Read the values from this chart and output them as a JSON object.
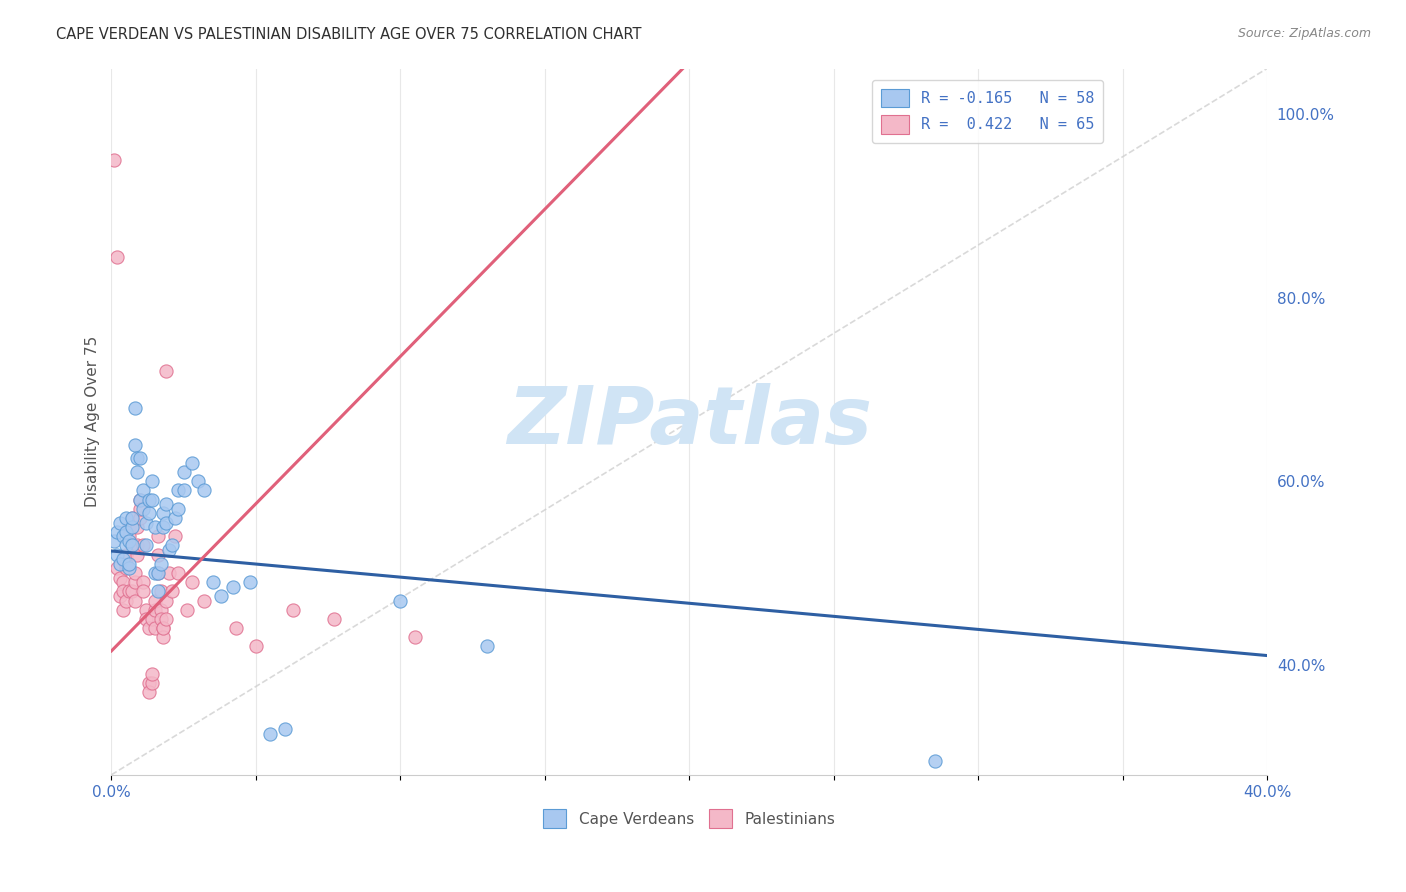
{
  "title": "CAPE VERDEAN VS PALESTINIAN DISABILITY AGE OVER 75 CORRELATION CHART",
  "source": "Source: ZipAtlas.com",
  "ylabel": "Disability Age Over 75",
  "xlim": [
    0.0,
    0.4
  ],
  "ylim": [
    0.28,
    1.05
  ],
  "xticks": [
    0.0,
    0.05,
    0.1,
    0.15,
    0.2,
    0.25,
    0.3,
    0.35,
    0.4
  ],
  "yticks_right": [
    0.4,
    0.6,
    0.8,
    1.0
  ],
  "cv_color": "#a8c8f0",
  "cv_color_edge": "#5b9bd5",
  "pal_color": "#f4b8c8",
  "pal_color_edge": "#e07090",
  "cv_trend_color": "#2e5fa3",
  "pal_trend_color": "#e0607a",
  "tick_color_blue": "#4472c4",
  "grid_color": "#e8e8e8",
  "background_color": "#ffffff",
  "title_color": "#303030",
  "source_color": "#888888",
  "diagonal_color": "#d0d0d0",
  "watermark_color": "#d0e4f5",
  "legend_label_cv": "R = -0.165   N = 58",
  "legend_label_pal": "R =  0.422   N = 65",
  "legend_entries_bottom": [
    "Cape Verdeans",
    "Palestinians"
  ],
  "cv_scatter": [
    [
      0.001,
      0.535
    ],
    [
      0.002,
      0.545
    ],
    [
      0.002,
      0.52
    ],
    [
      0.003,
      0.555
    ],
    [
      0.003,
      0.51
    ],
    [
      0.004,
      0.54
    ],
    [
      0.004,
      0.515
    ],
    [
      0.005,
      0.53
    ],
    [
      0.005,
      0.545
    ],
    [
      0.005,
      0.56
    ],
    [
      0.006,
      0.505
    ],
    [
      0.006,
      0.535
    ],
    [
      0.006,
      0.51
    ],
    [
      0.007,
      0.55
    ],
    [
      0.007,
      0.53
    ],
    [
      0.007,
      0.56
    ],
    [
      0.008,
      0.68
    ],
    [
      0.008,
      0.64
    ],
    [
      0.009,
      0.625
    ],
    [
      0.009,
      0.61
    ],
    [
      0.01,
      0.625
    ],
    [
      0.01,
      0.58
    ],
    [
      0.011,
      0.59
    ],
    [
      0.011,
      0.57
    ],
    [
      0.012,
      0.555
    ],
    [
      0.012,
      0.53
    ],
    [
      0.013,
      0.565
    ],
    [
      0.013,
      0.58
    ],
    [
      0.014,
      0.6
    ],
    [
      0.014,
      0.58
    ],
    [
      0.015,
      0.55
    ],
    [
      0.015,
      0.5
    ],
    [
      0.016,
      0.48
    ],
    [
      0.016,
      0.5
    ],
    [
      0.017,
      0.51
    ],
    [
      0.018,
      0.55
    ],
    [
      0.018,
      0.565
    ],
    [
      0.019,
      0.575
    ],
    [
      0.019,
      0.555
    ],
    [
      0.02,
      0.525
    ],
    [
      0.021,
      0.53
    ],
    [
      0.022,
      0.56
    ],
    [
      0.023,
      0.57
    ],
    [
      0.023,
      0.59
    ],
    [
      0.025,
      0.61
    ],
    [
      0.025,
      0.59
    ],
    [
      0.028,
      0.62
    ],
    [
      0.03,
      0.6
    ],
    [
      0.032,
      0.59
    ],
    [
      0.035,
      0.49
    ],
    [
      0.038,
      0.475
    ],
    [
      0.042,
      0.485
    ],
    [
      0.048,
      0.49
    ],
    [
      0.055,
      0.325
    ],
    [
      0.06,
      0.33
    ],
    [
      0.1,
      0.47
    ],
    [
      0.13,
      0.42
    ],
    [
      0.285,
      0.295
    ]
  ],
  "pal_scatter": [
    [
      0.001,
      0.95
    ],
    [
      0.002,
      0.845
    ],
    [
      0.002,
      0.505
    ],
    [
      0.003,
      0.495
    ],
    [
      0.003,
      0.475
    ],
    [
      0.004,
      0.46
    ],
    [
      0.004,
      0.49
    ],
    [
      0.004,
      0.48
    ],
    [
      0.005,
      0.505
    ],
    [
      0.005,
      0.51
    ],
    [
      0.005,
      0.52
    ],
    [
      0.005,
      0.47
    ],
    [
      0.006,
      0.48
    ],
    [
      0.006,
      0.55
    ],
    [
      0.006,
      0.54
    ],
    [
      0.007,
      0.56
    ],
    [
      0.007,
      0.53
    ],
    [
      0.007,
      0.48
    ],
    [
      0.008,
      0.47
    ],
    [
      0.008,
      0.49
    ],
    [
      0.008,
      0.5
    ],
    [
      0.009,
      0.52
    ],
    [
      0.009,
      0.55
    ],
    [
      0.009,
      0.53
    ],
    [
      0.01,
      0.58
    ],
    [
      0.01,
      0.56
    ],
    [
      0.01,
      0.57
    ],
    [
      0.011,
      0.53
    ],
    [
      0.011,
      0.49
    ],
    [
      0.011,
      0.48
    ],
    [
      0.012,
      0.46
    ],
    [
      0.012,
      0.45
    ],
    [
      0.013,
      0.44
    ],
    [
      0.013,
      0.38
    ],
    [
      0.013,
      0.37
    ],
    [
      0.014,
      0.38
    ],
    [
      0.014,
      0.39
    ],
    [
      0.014,
      0.45
    ],
    [
      0.015,
      0.44
    ],
    [
      0.015,
      0.46
    ],
    [
      0.015,
      0.47
    ],
    [
      0.016,
      0.5
    ],
    [
      0.016,
      0.52
    ],
    [
      0.016,
      0.54
    ],
    [
      0.017,
      0.48
    ],
    [
      0.017,
      0.46
    ],
    [
      0.017,
      0.45
    ],
    [
      0.018,
      0.44
    ],
    [
      0.018,
      0.43
    ],
    [
      0.018,
      0.44
    ],
    [
      0.019,
      0.45
    ],
    [
      0.019,
      0.47
    ],
    [
      0.019,
      0.72
    ],
    [
      0.02,
      0.5
    ],
    [
      0.021,
      0.48
    ],
    [
      0.022,
      0.54
    ],
    [
      0.023,
      0.5
    ],
    [
      0.026,
      0.46
    ],
    [
      0.028,
      0.49
    ],
    [
      0.032,
      0.47
    ],
    [
      0.043,
      0.44
    ],
    [
      0.05,
      0.42
    ],
    [
      0.063,
      0.46
    ],
    [
      0.077,
      0.45
    ],
    [
      0.105,
      0.43
    ]
  ],
  "cv_trend": [
    0.0,
    0.4,
    0.524,
    0.41
  ],
  "pal_trend": [
    0.0,
    0.095,
    0.415,
    0.72
  ],
  "diagonal": [
    0.0,
    0.4,
    0.28,
    1.05
  ]
}
